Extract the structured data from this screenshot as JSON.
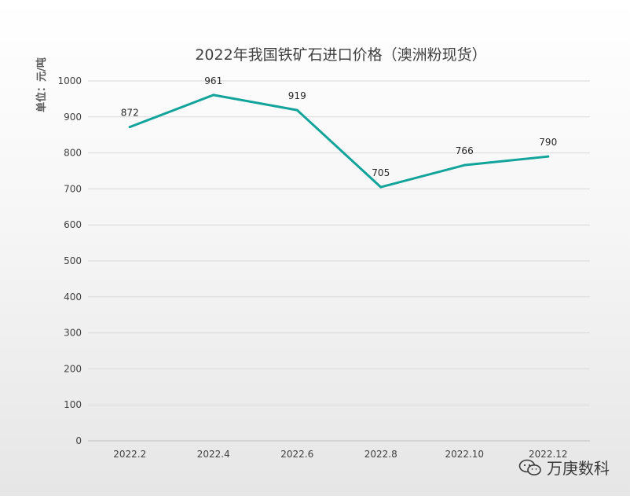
{
  "chart_data": {
    "type": "line",
    "title": "2022年我国铁矿石进口价格（澳洲粉现货）",
    "ylabel": "单位：元/吨",
    "xlabel": "",
    "categories": [
      "2022.2",
      "2022.4",
      "2022.6",
      "2022.8",
      "2022.10",
      "2022.12"
    ],
    "series": [
      {
        "values": [
          872,
          961,
          919,
          705,
          766,
          790
        ],
        "color": "#12a39a"
      }
    ],
    "ylim": [
      0,
      1000
    ],
    "yticks": [
      0,
      100,
      200,
      300,
      400,
      500,
      600,
      700,
      800,
      900,
      1000
    ],
    "grid": true,
    "data_labels": true
  },
  "watermark": {
    "text": "万庚数科",
    "icon": "wechat-icon"
  }
}
